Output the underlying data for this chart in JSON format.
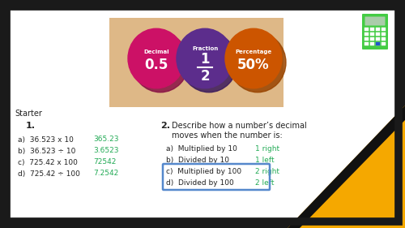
{
  "bg_color": "#1a1a1a",
  "slide_bg": "#ffffff",
  "border_color": "#1a1a1a",
  "banner_bg": "#deb887",
  "circle1_color": "#cc1166",
  "circle1_shadow": "#881144",
  "circle2_color": "#5c2d8c",
  "circle2_shadow": "#3a1a5c",
  "circle3_color": "#cc5500",
  "circle3_shadow": "#994400",
  "decimal_label": "Decimal",
  "decimal_value": "0.5",
  "fraction_label": "Fraction",
  "fraction_num": "1",
  "fraction_den": "2",
  "percentage_label": "Percentage",
  "percentage_value": "50%",
  "starter_text": "Starter",
  "q1_num": "1.",
  "q2_num": "2.",
  "q2_desc1": "Describe how a number’s decimal",
  "q2_desc2": "moves when the number is:",
  "q1a": "a)  36.523 x 10",
  "q1b": "b)  36.523 ÷ 10",
  "q1c": "c)  725.42 x 100",
  "q1d": "d)  725.42 ÷ 100",
  "a1a": "365.23",
  "a1b": "3.6523",
  "a1c": "72542",
  "a1d": "7.2542",
  "q2a": "a)  Multiplied by 10",
  "q2b": "b)  Divided by 10",
  "q2c": "c)  Multiplied by 100",
  "q2d": "d)  Divided by 100",
  "a2a": "1 right",
  "a2b": "1 left",
  "a2c": "2 right",
  "a2d": "2 left",
  "answer_color": "#22aa55",
  "text_color": "#222222",
  "highlight_box_color": "#5588cc",
  "triangle_color": "#f5a800",
  "triangle_dark": "#111111",
  "calc_green": "#44cc44",
  "calc_screen": "#aaccaa",
  "white": "#ffffff"
}
